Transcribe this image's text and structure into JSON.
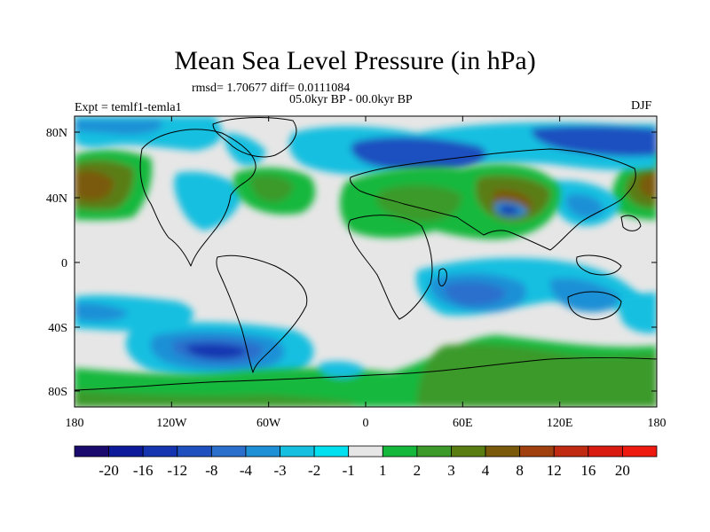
{
  "title": "Mean Sea Level Pressure (in hPa)",
  "stats": "rmsd= 1.70677 diff= 0.0111084",
  "period": "05.0kyr BP - 00.0kyr BP",
  "experiment": "Expt = temlf1-temla1",
  "season": "DJF",
  "axes": {
    "lon_ticks": [
      "180",
      "120W",
      "60W",
      "0",
      "60E",
      "120E",
      "180"
    ],
    "lat_ticks": [
      "80N",
      "40N",
      "0",
      "40S",
      "80S"
    ]
  },
  "colorbar": {
    "levels": [
      "-20",
      "-16",
      "-12",
      "-8",
      "-4",
      "-3",
      "-2",
      "-1",
      "1",
      "2",
      "3",
      "4",
      "8",
      "12",
      "16",
      "20"
    ],
    "colors": [
      "#1a0a6e",
      "#0d1a99",
      "#1535b0",
      "#1e50c0",
      "#2a6fcc",
      "#1e90d6",
      "#15bfe0",
      "#00e0ee",
      "#e6e6e6",
      "#16b83c",
      "#3b9a2a",
      "#5a7d12",
      "#7a5a0a",
      "#a0400e",
      "#c02a10",
      "#d81a10",
      "#ee1a10"
    ]
  },
  "colors": {
    "land_line": "#000000",
    "neutral": "#e6e6e6",
    "cyan": "#15bfe0",
    "light_blue": "#2a6fcc",
    "blue": "#1e50c0",
    "dark_blue": "#1535b0",
    "green": "#16b83c",
    "dark_green": "#3b9a2a",
    "olive": "#5a7d12",
    "brown": "#7a5a0a"
  }
}
